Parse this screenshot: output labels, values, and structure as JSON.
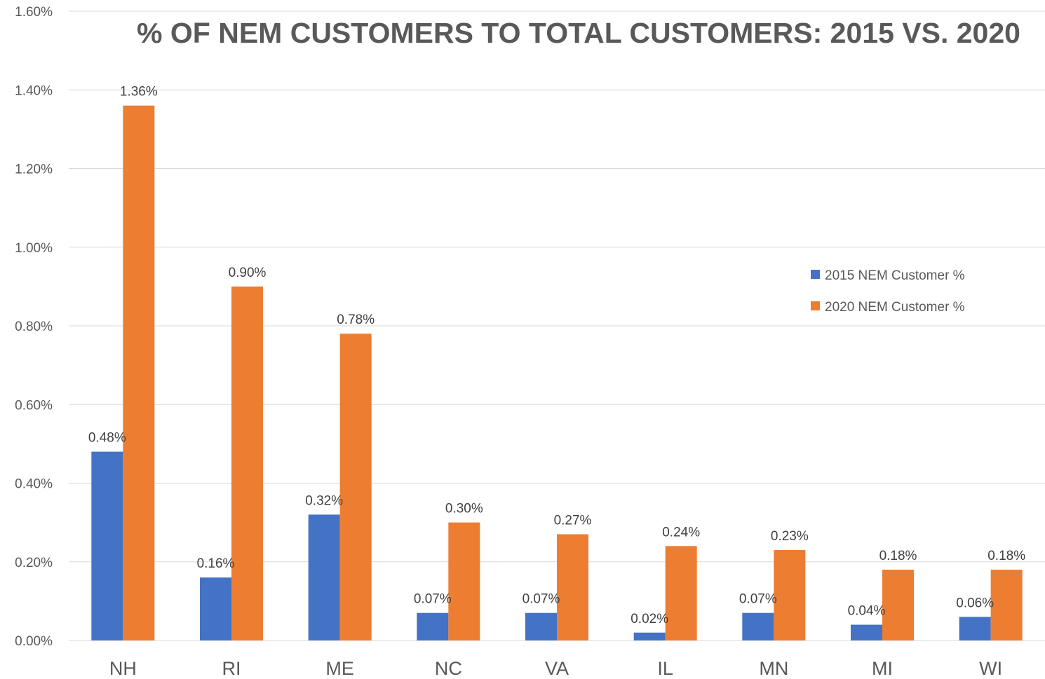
{
  "chart_data": {
    "type": "bar",
    "title": "% OF NEM CUSTOMERS TO TOTAL CUSTOMERS: 2015 VS. 2020",
    "categories": [
      "NH",
      "RI",
      "ME",
      "NC",
      "VA",
      "IL",
      "MN",
      "MI",
      "WI"
    ],
    "series": [
      {
        "name": "2015 NEM Customer %",
        "color": "#4472c4",
        "values": [
          0.48,
          0.16,
          0.32,
          0.07,
          0.07,
          0.02,
          0.07,
          0.04,
          0.06
        ],
        "labels": [
          "0.48%",
          "0.16%",
          "0.32%",
          "0.07%",
          "0.07%",
          "0.02%",
          "0.07%",
          "0.04%",
          "0.06%"
        ]
      },
      {
        "name": "2020 NEM Customer %",
        "color": "#ed7d31",
        "values": [
          1.36,
          0.9,
          0.78,
          0.3,
          0.27,
          0.24,
          0.23,
          0.18,
          0.18
        ],
        "labels": [
          "1.36%",
          "0.90%",
          "0.78%",
          "0.30%",
          "0.27%",
          "0.24%",
          "0.23%",
          "0.18%",
          "0.18%"
        ]
      }
    ],
    "ylim": [
      0,
      1.6
    ],
    "yticks": [
      "0.00%",
      "0.20%",
      "0.40%",
      "0.60%",
      "0.80%",
      "1.00%",
      "1.20%",
      "1.40%",
      "1.60%"
    ],
    "grid": true,
    "legend_position": "right"
  }
}
